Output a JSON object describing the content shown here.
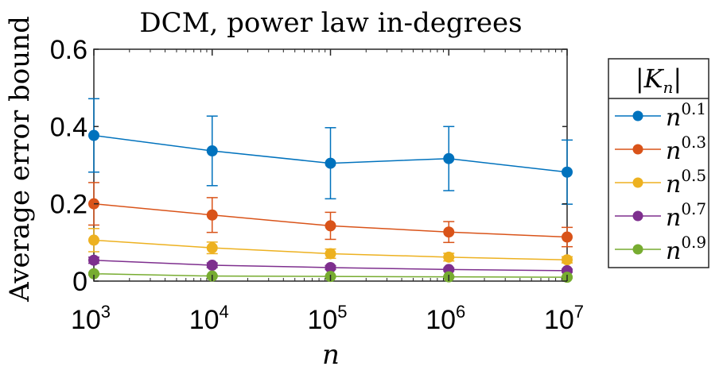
{
  "chart_data": {
    "type": "line",
    "title": "DCM, power law in-degrees",
    "xlabel": "n",
    "ylabel": "Average error bound",
    "x": [
      1000,
      10000,
      100000,
      1000000,
      10000000
    ],
    "x_ticks": [
      {
        "base": "10",
        "exp": "3"
      },
      {
        "base": "10",
        "exp": "4"
      },
      {
        "base": "10",
        "exp": "5"
      },
      {
        "base": "10",
        "exp": "6"
      },
      {
        "base": "10",
        "exp": "7"
      }
    ],
    "y_ticks": [
      "0",
      "0.2",
      "0.4",
      "0.6"
    ],
    "y_tick_values": [
      0,
      0.2,
      0.4,
      0.6
    ],
    "ylim": [
      0,
      0.6
    ],
    "xscale": "log",
    "grid": false,
    "legend_title": "|K_n|",
    "legend_title_parts": {
      "main": "|K",
      "sub": "n",
      "end": "|"
    },
    "legend_position": "outside-right",
    "series": [
      {
        "name": "n^0.1",
        "base": "n",
        "exp": "0.1",
        "color": "#0072BD",
        "values": [
          0.377,
          0.337,
          0.305,
          0.317,
          0.282
        ],
        "errors": [
          0.095,
          0.09,
          0.092,
          0.083,
          0.083
        ]
      },
      {
        "name": "n^0.3",
        "base": "n",
        "exp": "0.3",
        "color": "#D95319",
        "values": [
          0.2,
          0.171,
          0.143,
          0.127,
          0.114
        ],
        "errors": [
          0.055,
          0.045,
          0.035,
          0.027,
          0.025
        ]
      },
      {
        "name": "n^0.5",
        "base": "n",
        "exp": "0.5",
        "color": "#EDB120",
        "values": [
          0.106,
          0.086,
          0.071,
          0.062,
          0.055
        ],
        "errors": [
          0.03,
          0.015,
          0.012,
          0.01,
          0.008
        ]
      },
      {
        "name": "n^0.7",
        "base": "n",
        "exp": "0.7",
        "color": "#7E2F8E",
        "values": [
          0.054,
          0.041,
          0.035,
          0.03,
          0.027
        ],
        "errors": [
          0.008,
          0.006,
          0.005,
          0.004,
          0.004
        ]
      },
      {
        "name": "n^0.9",
        "base": "n",
        "exp": "0.9",
        "color": "#77AC30",
        "values": [
          0.019,
          0.013,
          0.012,
          0.011,
          0.01
        ],
        "errors": [
          0.003,
          0.002,
          0.002,
          0.002,
          0.002
        ]
      }
    ]
  }
}
